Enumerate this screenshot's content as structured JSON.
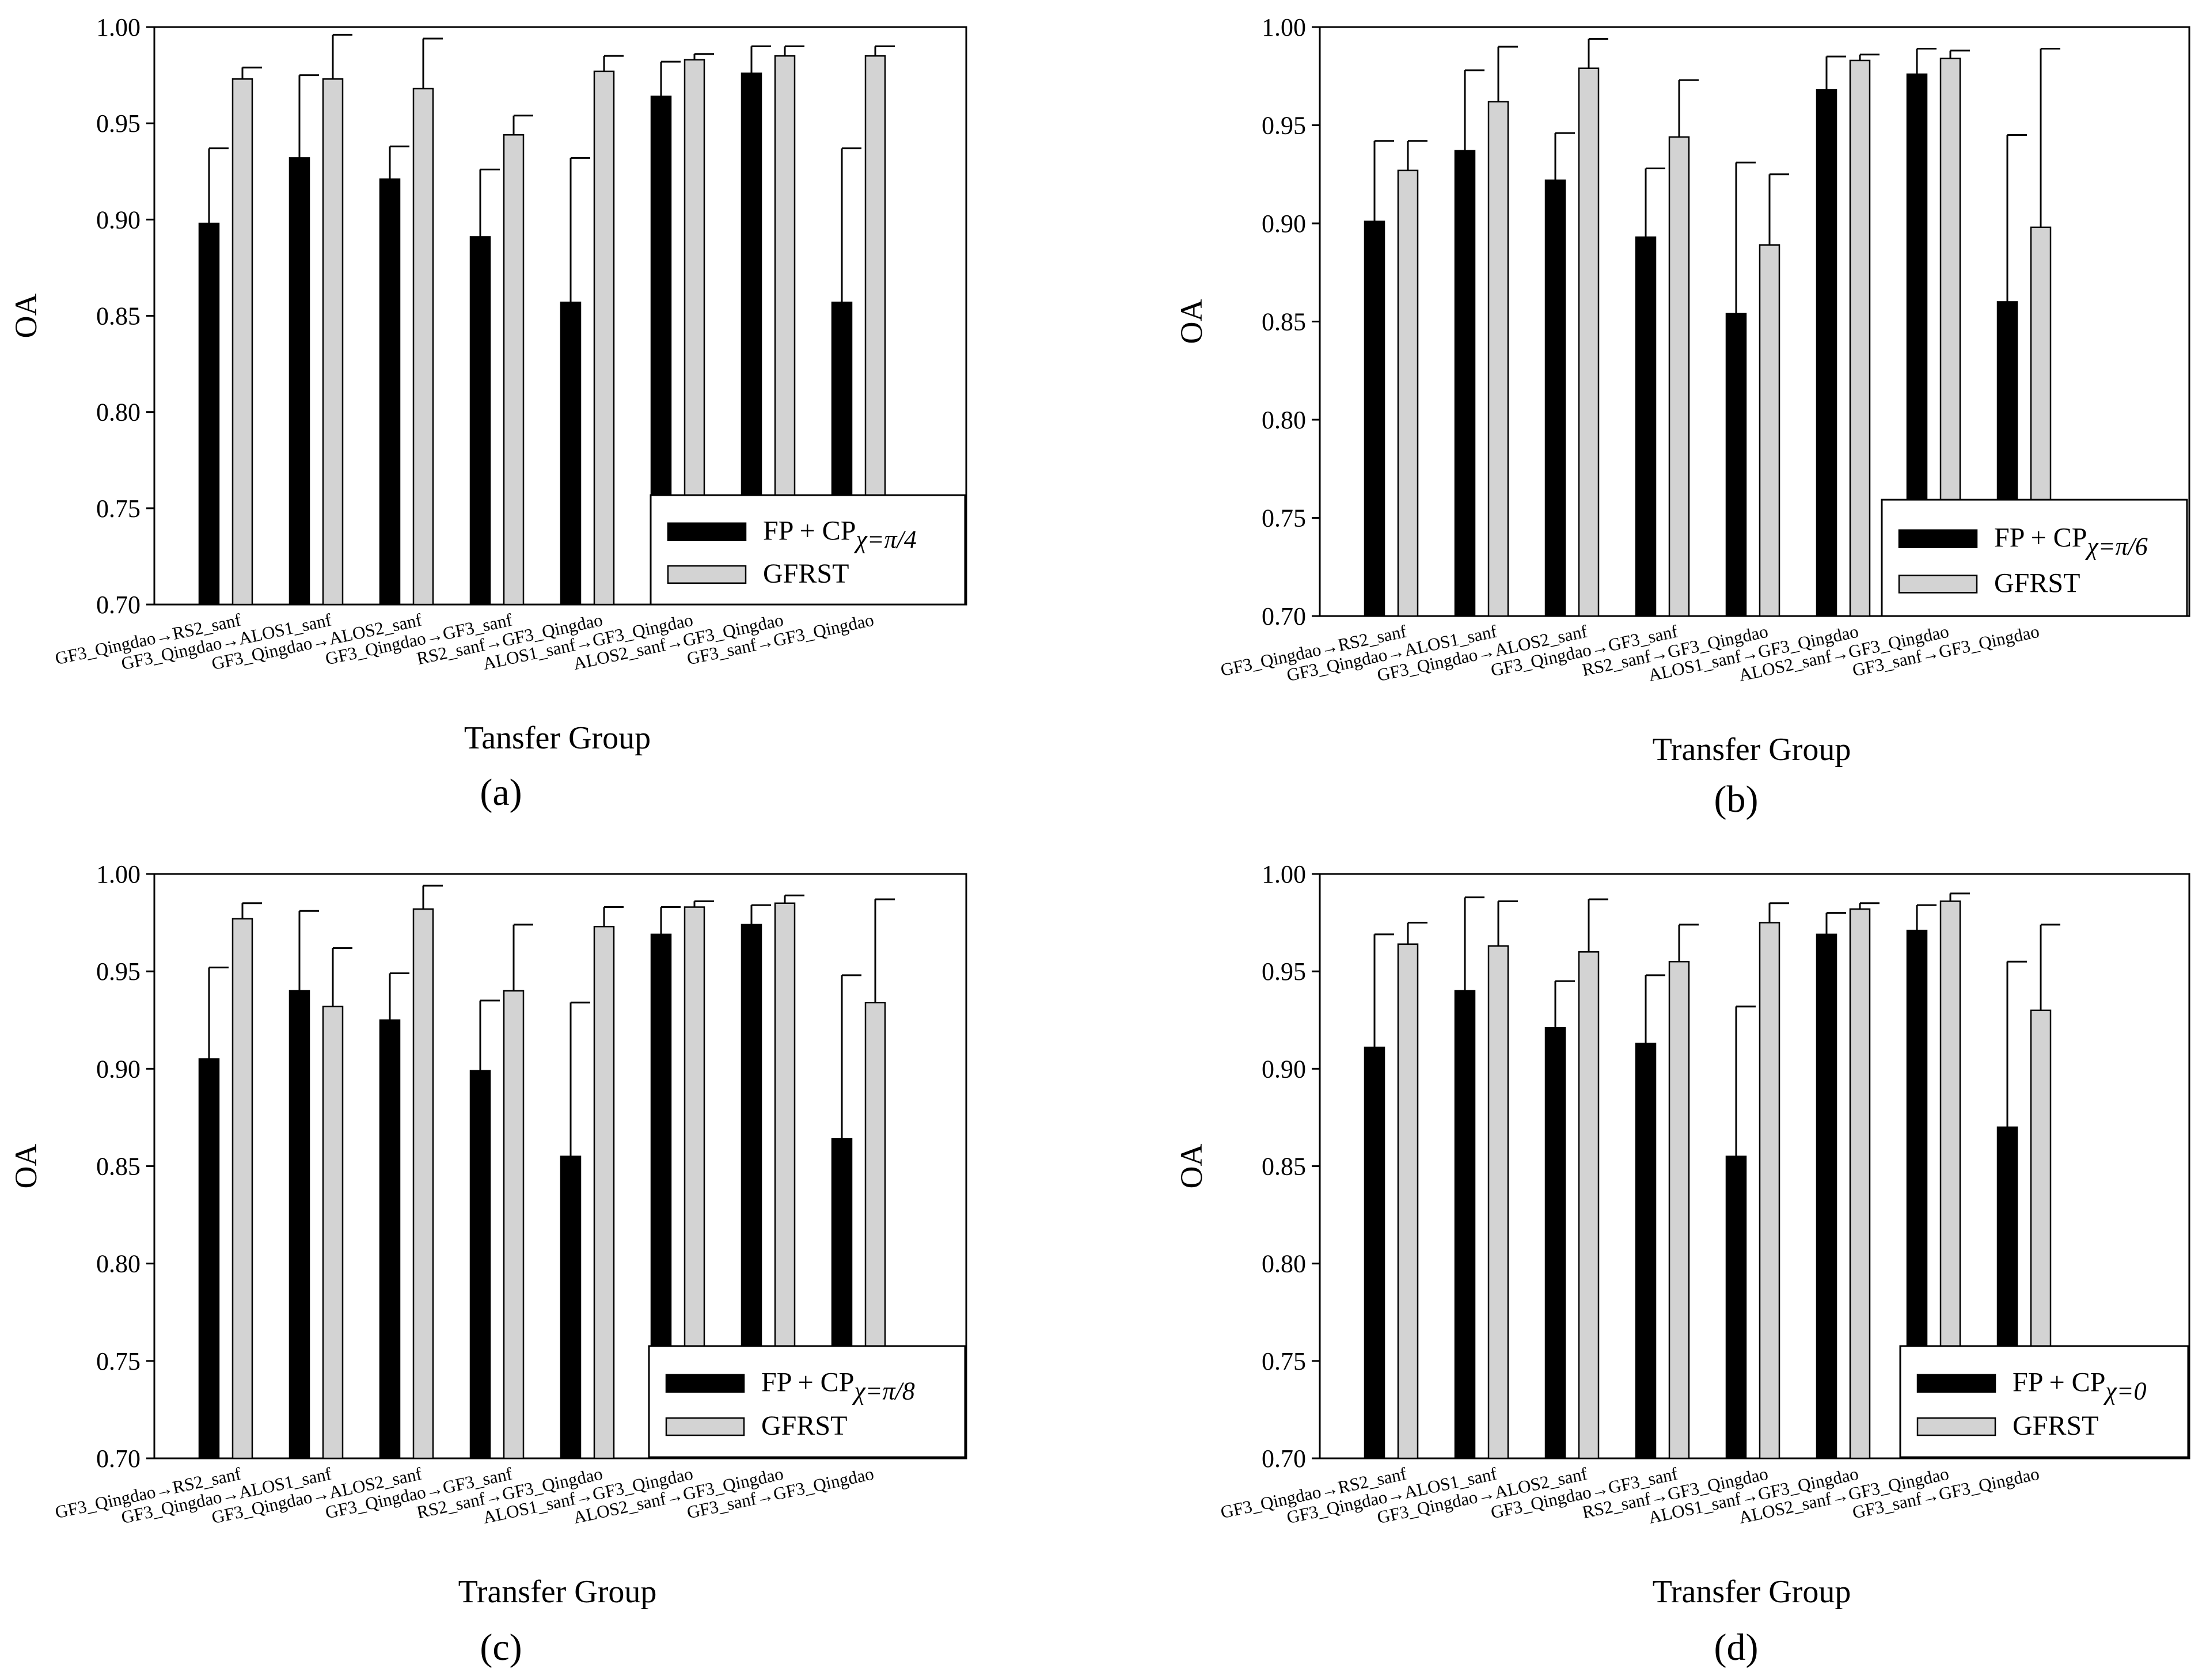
{
  "colors": {
    "fp_cp": "#000000",
    "gfrst": "#d3d3d3",
    "axis": "#000000",
    "background": "#ffffff"
  },
  "chart_data": [
    {
      "type": "bar",
      "panel_label": "(a)",
      "xlabel": "Tansfer Group",
      "ylabel": "OA",
      "ylim": [
        0.7,
        1.0
      ],
      "yticks": [
        "0.70",
        "0.75",
        "0.80",
        "0.85",
        "0.90",
        "0.95",
        "1.00"
      ],
      "legend_position": "bottom-right",
      "categories": [
        "GF3_Qingdao→RS2_sanf",
        "GF3_Qingdao→ALOS1_sanf",
        "GF3_Qingdao→ALOS2_sanf",
        "GF3_Qingdao→GF3_sanf",
        "RS2_sanf→GF3_Qingdao",
        "ALOS1_sanf→GF3_Qingdao",
        "ALOS2_sanf→GF3_Qingdao",
        "GF3_sanf→GF3_Qingdao"
      ],
      "series": [
        {
          "name": "FP + CP",
          "legend_sub": "χ=π/4",
          "color": "#000000",
          "values": [
            0.898,
            0.932,
            0.921,
            0.891,
            0.857,
            0.964,
            0.976,
            0.857
          ],
          "err_upper": [
            0.937,
            0.975,
            0.938,
            0.926,
            0.932,
            0.982,
            0.99,
            0.937
          ]
        },
        {
          "name": "GFRST",
          "color": "#d3d3d3",
          "values": [
            0.973,
            0.973,
            0.968,
            0.944,
            0.977,
            0.983,
            0.985,
            0.985
          ],
          "err_upper": [
            0.979,
            0.996,
            0.994,
            0.954,
            0.985,
            0.986,
            0.99,
            0.99
          ]
        }
      ]
    },
    {
      "type": "bar",
      "panel_label": "(b)",
      "xlabel": "Transfer Group",
      "ylabel": "OA",
      "ylim": [
        0.7,
        1.0
      ],
      "yticks": [
        "0.70",
        "0.75",
        "0.80",
        "0.85",
        "0.90",
        "0.95",
        "1.00"
      ],
      "legend_position": "bottom-right",
      "categories": [
        "GF3_Qingdao→RS2_sanf",
        "GF3_Qingdao→ALOS1_sanf",
        "GF3_Qingdao→ALOS2_sanf",
        "GF3_Qingdao→GF3_sanf",
        "RS2_sanf→GF3_Qingdao",
        "ALOS1_sanf→GF3_Qingdao",
        "ALOS2_sanf→GF3_Qingdao",
        "GF3_sanf→GF3_Qingdao"
      ],
      "series": [
        {
          "name": "FP + CP",
          "legend_sub": "χ=π/6",
          "color": "#000000",
          "values": [
            0.901,
            0.937,
            0.922,
            0.893,
            0.854,
            0.968,
            0.976,
            0.86
          ],
          "err_upper": [
            0.942,
            0.978,
            0.946,
            0.928,
            0.931,
            0.985,
            0.989,
            0.945
          ]
        },
        {
          "name": "GFRST",
          "color": "#d3d3d3",
          "values": [
            0.927,
            0.962,
            0.979,
            0.944,
            0.889,
            0.983,
            0.984,
            0.898
          ],
          "err_upper": [
            0.942,
            0.99,
            0.994,
            0.973,
            0.925,
            0.986,
            0.988,
            0.989
          ]
        }
      ]
    },
    {
      "type": "bar",
      "panel_label": "(c)",
      "xlabel": "Transfer Group",
      "ylabel": "OA",
      "ylim": [
        0.7,
        1.0
      ],
      "yticks": [
        "0.70",
        "0.75",
        "0.80",
        "0.85",
        "0.90",
        "0.95",
        "1.00"
      ],
      "legend_position": "bottom-right",
      "categories": [
        "GF3_Qingdao→RS2_sanf",
        "GF3_Qingdao→ALOS1_sanf",
        "GF3_Qingdao→ALOS2_sanf",
        "GF3_Qingdao→GF3_sanf",
        "RS2_sanf→GF3_Qingdao",
        "ALOS1_sanf→GF3_Qingdao",
        "ALOS2_sanf→GF3_Qingdao",
        "GF3_sanf→GF3_Qingdao"
      ],
      "series": [
        {
          "name": "FP + CP",
          "legend_sub": "χ=π/8",
          "color": "#000000",
          "values": [
            0.905,
            0.94,
            0.925,
            0.899,
            0.855,
            0.969,
            0.974,
            0.864
          ],
          "err_upper": [
            0.952,
            0.981,
            0.949,
            0.935,
            0.934,
            0.983,
            0.984,
            0.948
          ]
        },
        {
          "name": "GFRST",
          "color": "#d3d3d3",
          "values": [
            0.977,
            0.932,
            0.982,
            0.94,
            0.973,
            0.983,
            0.985,
            0.934
          ],
          "err_upper": [
            0.985,
            0.962,
            0.994,
            0.974,
            0.983,
            0.986,
            0.989,
            0.987
          ]
        }
      ]
    },
    {
      "type": "bar",
      "panel_label": "(d)",
      "xlabel": "Transfer Group",
      "ylabel": "OA",
      "ylim": [
        0.7,
        1.0
      ],
      "yticks": [
        "0.70",
        "0.75",
        "0.80",
        "0.85",
        "0.90",
        "0.95",
        "1.00"
      ],
      "legend_position": "bottom-right",
      "categories": [
        "GF3_Qingdao→RS2_sanf",
        "GF3_Qingdao→ALOS1_sanf",
        "GF3_Qingdao→ALOS2_sanf",
        "GF3_Qingdao→GF3_sanf",
        "RS2_sanf→GF3_Qingdao",
        "ALOS1_sanf→GF3_Qingdao",
        "ALOS2_sanf→GF3_Qingdao",
        "GF3_sanf→GF3_Qingdao"
      ],
      "series": [
        {
          "name": "FP + CP",
          "legend_sub": "χ=0",
          "color": "#000000",
          "values": [
            0.911,
            0.94,
            0.921,
            0.913,
            0.855,
            0.969,
            0.971,
            0.87
          ],
          "err_upper": [
            0.969,
            0.988,
            0.945,
            0.948,
            0.932,
            0.98,
            0.984,
            0.955
          ]
        },
        {
          "name": "GFRST",
          "color": "#d3d3d3",
          "values": [
            0.964,
            0.963,
            0.96,
            0.955,
            0.975,
            0.982,
            0.986,
            0.93
          ],
          "err_upper": [
            0.975,
            0.986,
            0.987,
            0.974,
            0.985,
            0.985,
            0.99,
            0.974
          ]
        }
      ]
    }
  ]
}
